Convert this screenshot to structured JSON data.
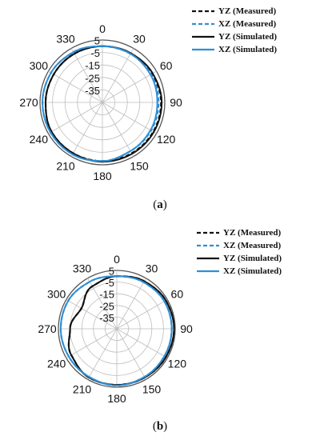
{
  "chart_data": [
    {
      "type": "polar",
      "caption": "(a)",
      "caption_letter": "a",
      "angle_ticks": [
        "0",
        "30",
        "60",
        "90",
        "120",
        "150",
        "180",
        "210",
        "240",
        "270",
        "300",
        "330"
      ],
      "radial_ticks": [
        "5",
        "-5",
        "-15",
        "-25",
        "-35"
      ],
      "rlim": [
        -45,
        5
      ],
      "grid": true,
      "legend_position": "top-right",
      "angles": [
        0,
        30,
        60,
        90,
        120,
        150,
        180,
        210,
        240,
        270,
        300,
        330,
        360
      ],
      "series": [
        {
          "name": "YZ (Measured)",
          "style": "dashed",
          "color": "#111111",
          "values": [
            0,
            0,
            1,
            2,
            2,
            2,
            2,
            2,
            2,
            0.5,
            0,
            0,
            0
          ]
        },
        {
          "name": "XZ (Measured)",
          "style": "dashed",
          "color": "#2e8fd6",
          "values": [
            0,
            0,
            0,
            0,
            0,
            0,
            2,
            3,
            3,
            3,
            2.5,
            1.5,
            0
          ]
        },
        {
          "name": "YZ (Simulated)",
          "style": "solid",
          "color": "#111111",
          "values": [
            0,
            0.5,
            1.5,
            2.5,
            2.5,
            2.5,
            2.5,
            2,
            2,
            0.5,
            0,
            0,
            0
          ]
        },
        {
          "name": "XZ (Simulated)",
          "style": "solid",
          "color": "#2e8fd6",
          "values": [
            0,
            0,
            -0.5,
            -1,
            -0.5,
            0,
            2,
            3,
            3,
            3,
            2.5,
            1.5,
            0
          ]
        }
      ]
    },
    {
      "type": "polar",
      "caption": "(b)",
      "caption_letter": "b",
      "angle_ticks": [
        "0",
        "30",
        "60",
        "90",
        "120",
        "150",
        "180",
        "210",
        "240",
        "270",
        "300",
        "330"
      ],
      "radial_ticks": [
        "5",
        "-5",
        "-15",
        "-25",
        "-35"
      ],
      "rlim": [
        -45,
        5
      ],
      "grid": true,
      "legend_position": "top-right",
      "angles": [
        0,
        30,
        60,
        90,
        120,
        150,
        180,
        210,
        240,
        270,
        300,
        330,
        360
      ],
      "series": [
        {
          "name": "YZ (Measured)",
          "style": "dashed",
          "color": "#111111",
          "values": [
            0,
            2,
            3.5,
            4,
            3.5,
            3,
            3,
            3,
            0,
            -5,
            -10,
            -3,
            0
          ]
        },
        {
          "name": "XZ (Measured)",
          "style": "dashed",
          "color": "#2e8fd6",
          "values": [
            0,
            1,
            2,
            2,
            2,
            2.5,
            3.5,
            2.5,
            2.5,
            3,
            3,
            1.5,
            0
          ]
        },
        {
          "name": "YZ (Simulated)",
          "style": "solid",
          "color": "#111111",
          "values": [
            0,
            2,
            3.5,
            4,
            3.5,
            3,
            3,
            3,
            0,
            -5,
            -10,
            -3,
            0
          ]
        },
        {
          "name": "XZ (Simulated)",
          "style": "solid",
          "color": "#2e8fd6",
          "values": [
            0,
            1,
            2,
            2,
            2,
            2.5,
            3.5,
            2.5,
            2.5,
            3,
            3,
            1.5,
            0
          ]
        }
      ]
    }
  ]
}
